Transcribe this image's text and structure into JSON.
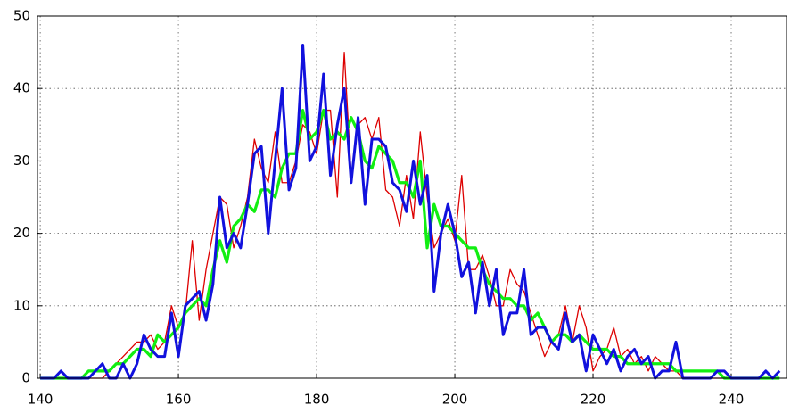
{
  "chart_data": {
    "type": "line",
    "x": [
      140,
      141,
      142,
      143,
      144,
      145,
      146,
      147,
      148,
      149,
      150,
      151,
      152,
      153,
      154,
      155,
      156,
      157,
      158,
      159,
      160,
      161,
      162,
      163,
      164,
      165,
      166,
      167,
      168,
      169,
      170,
      171,
      172,
      173,
      174,
      175,
      176,
      177,
      178,
      179,
      180,
      181,
      182,
      183,
      184,
      185,
      186,
      187,
      188,
      189,
      190,
      191,
      192,
      193,
      194,
      195,
      196,
      197,
      198,
      199,
      200,
      201,
      202,
      203,
      204,
      205,
      206,
      207,
      208,
      209,
      210,
      211,
      212,
      213,
      214,
      215,
      216,
      217,
      218,
      219,
      220,
      221,
      222,
      223,
      224,
      225,
      226,
      227,
      228,
      229,
      230,
      231,
      232,
      233,
      234,
      235,
      236,
      237,
      238,
      239,
      240,
      241,
      242,
      243,
      244,
      245,
      246,
      247
    ],
    "series": [
      {
        "color": "#dd0000",
        "width": 1.3,
        "values": [
          0,
          0,
          0,
          0,
          0,
          0,
          0,
          0,
          0,
          0,
          1,
          2,
          3,
          4,
          5,
          5,
          6,
          4,
          5,
          10,
          7,
          9,
          19,
          8,
          15,
          20,
          25,
          24,
          18,
          21,
          25,
          33,
          29,
          27,
          34,
          27,
          27,
          30,
          35,
          34,
          31,
          37,
          37,
          25,
          45,
          28,
          35,
          36,
          33,
          36,
          26,
          25,
          21,
          28,
          22,
          34,
          25,
          18,
          20,
          22,
          19,
          28,
          15,
          15,
          17,
          14,
          10,
          10,
          15,
          13,
          12,
          9,
          6,
          3,
          5,
          6,
          10,
          5,
          10,
          7,
          1,
          3,
          4,
          7,
          3,
          4,
          2,
          3,
          1,
          3,
          2,
          1,
          1,
          0,
          0,
          0,
          0,
          0,
          0,
          0,
          0,
          0,
          0,
          0,
          0,
          0,
          0,
          1
        ]
      },
      {
        "color": "#11ee11",
        "width": 3.2,
        "values": [
          0,
          0,
          0,
          0,
          0,
          0,
          0,
          1,
          1,
          1,
          1,
          2,
          2,
          3,
          4,
          4,
          3,
          6,
          5,
          6,
          7,
          9,
          10,
          11,
          10,
          15,
          19,
          16,
          21,
          22,
          24,
          23,
          26,
          26,
          25,
          29,
          31,
          31,
          37,
          33,
          34,
          37,
          33,
          34,
          33,
          36,
          34,
          30,
          29,
          32,
          31,
          30,
          27,
          27,
          25,
          30,
          18,
          24,
          21,
          21,
          20,
          19,
          18,
          18,
          15,
          13,
          12,
          11,
          11,
          10,
          10,
          8,
          9,
          7,
          5,
          6,
          6,
          5,
          6,
          5,
          4,
          4,
          4,
          3,
          3,
          2,
          2,
          2,
          2,
          2,
          2,
          2,
          1,
          1,
          1,
          1,
          1,
          1,
          1,
          0,
          0,
          0,
          0,
          0,
          0,
          0,
          0,
          0
        ]
      },
      {
        "color": "#1111dd",
        "width": 3,
        "values": [
          0,
          0,
          0,
          1,
          0,
          0,
          0,
          0,
          1,
          2,
          0,
          0,
          2,
          0,
          2,
          6,
          4,
          3,
          3,
          9,
          3,
          10,
          11,
          12,
          8,
          13,
          25,
          18,
          20,
          18,
          24,
          31,
          32,
          20,
          30,
          40,
          26,
          29,
          46,
          30,
          32,
          42,
          28,
          35,
          40,
          27,
          36,
          24,
          33,
          33,
          32,
          27,
          26,
          23,
          30,
          24,
          28,
          12,
          20,
          24,
          20,
          14,
          16,
          9,
          16,
          10,
          15,
          6,
          9,
          9,
          15,
          6,
          7,
          7,
          5,
          4,
          9,
          5,
          6,
          1,
          6,
          4,
          2,
          4,
          1,
          3,
          4,
          2,
          3,
          0,
          1,
          1,
          5,
          0,
          0,
          0,
          0,
          0,
          1,
          1,
          0,
          0,
          0,
          0,
          0,
          1,
          0,
          1
        ]
      }
    ],
    "xlim": [
      139.6,
      248
    ],
    "ylim": [
      0,
      50
    ],
    "xticks": [
      140,
      160,
      180,
      200,
      220,
      240
    ],
    "yticks": [
      0,
      10,
      20,
      30,
      40,
      50
    ],
    "grid": true
  }
}
